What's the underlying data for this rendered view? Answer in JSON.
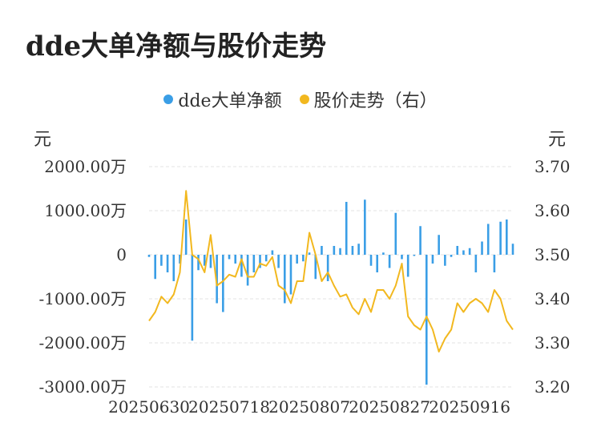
{
  "title": "dde大单净额与股价走势",
  "legend": {
    "bar_label": "dde大单净额",
    "line_label": "股价走势（右）"
  },
  "units": {
    "left": "元",
    "right": "元"
  },
  "colors": {
    "bar": "#3a9ee6",
    "line": "#f2b81f",
    "grid": "#e3e3e3"
  },
  "chart_data": {
    "type": "bar",
    "left_axis": {
      "ticks": [
        2000,
        1000,
        0,
        -1000,
        -2000,
        -3000
      ],
      "tick_labels": [
        "2000.00万",
        "1000.00万",
        "0",
        "-1000.00万",
        "-2000.00万",
        "-3000.00万"
      ],
      "ylim": [
        -3000,
        2000
      ]
    },
    "right_axis": {
      "ticks": [
        3.7,
        3.6,
        3.5,
        3.4,
        3.3,
        3.2
      ],
      "tick_labels": [
        "3.70",
        "3.60",
        "3.50",
        "3.40",
        "3.30",
        "3.20"
      ],
      "ylim": [
        3.2,
        3.7
      ]
    },
    "x_tick_labels": [
      "20250630",
      "20250718",
      "20250807",
      "20250827",
      "20250916"
    ],
    "x_tick_indices": [
      0,
      13,
      26,
      39,
      52
    ],
    "series": [
      {
        "name": "dde大单净额",
        "type": "bar",
        "values": [
          -50,
          -550,
          -250,
          -400,
          -600,
          -200,
          800,
          -1950,
          -350,
          -250,
          -300,
          -1100,
          -1300,
          -100,
          -200,
          -500,
          -700,
          -400,
          -300,
          -150,
          100,
          -300,
          -1100,
          -900,
          -200,
          -150,
          50,
          -550,
          200,
          -600,
          200,
          150,
          1200,
          200,
          250,
          1250,
          -250,
          -400,
          50,
          -300,
          950,
          -100,
          -500,
          0,
          650,
          -2950,
          -200,
          450,
          -250,
          -50,
          200,
          100,
          150,
          -400,
          300,
          700,
          -400,
          750,
          800,
          250
        ]
      },
      {
        "name": "股价走势（右）",
        "type": "line",
        "values": [
          3.35,
          3.37,
          3.405,
          3.39,
          3.41,
          3.46,
          3.645,
          3.5,
          3.49,
          3.46,
          3.545,
          3.43,
          3.44,
          3.455,
          3.45,
          3.49,
          3.45,
          3.45,
          3.48,
          3.475,
          3.495,
          3.43,
          3.42,
          3.39,
          3.44,
          3.44,
          3.55,
          3.5,
          3.44,
          3.46,
          3.43,
          3.405,
          3.41,
          3.38,
          3.365,
          3.4,
          3.37,
          3.42,
          3.42,
          3.4,
          3.43,
          3.48,
          3.36,
          3.34,
          3.33,
          3.36,
          3.33,
          3.28,
          3.31,
          3.33,
          3.39,
          3.37,
          3.39,
          3.4,
          3.39,
          3.37,
          3.42,
          3.4,
          3.35,
          3.33
        ]
      }
    ],
    "grid": true,
    "legend_position": "top-center"
  }
}
